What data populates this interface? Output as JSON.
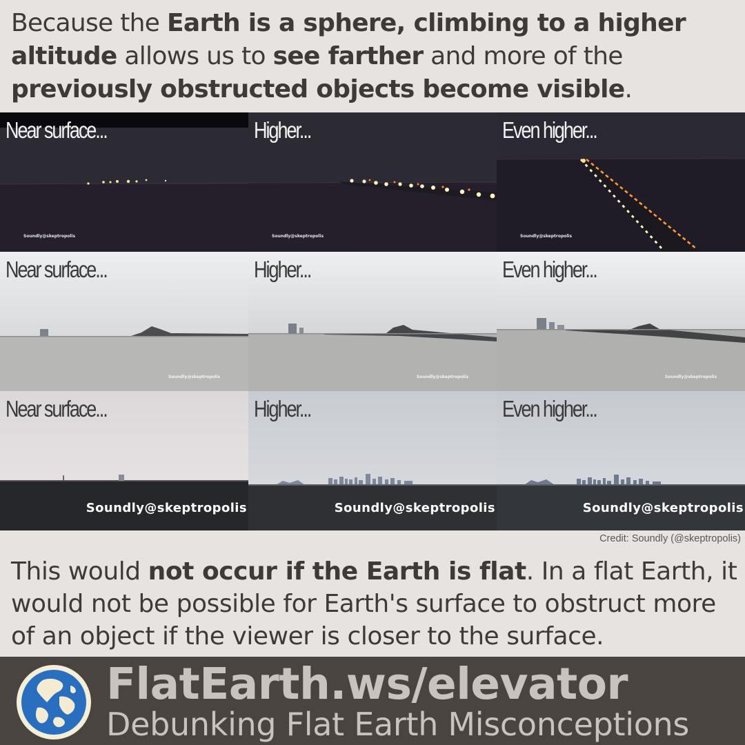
{
  "intro": {
    "t1": "Because the ",
    "b1": "Earth is a sphere, climbing to a higher altitude",
    "t2": " allows us to ",
    "b2": "see farther",
    "t3": " and more of the ",
    "b3": "previously obstructed objects become visible",
    "t4": "."
  },
  "panels": [
    {
      "caption": "Near surface...",
      "watermark": "Soundly@skeptropolis"
    },
    {
      "caption": "Higher...",
      "watermark": "Soundly@skeptropolis"
    },
    {
      "caption": "Even higher...",
      "watermark": "Soundly@skeptropolis"
    },
    {
      "caption": "Near surface...",
      "watermark": "Soundly@skeptropolis"
    },
    {
      "caption": "Higher...",
      "watermark": "Soundly@skeptropolis"
    },
    {
      "caption": "Even higher...",
      "watermark": "Soundly@skeptropolis"
    },
    {
      "caption": "Near surface...",
      "watermark": "Soundly@skeptropolis"
    },
    {
      "caption": "Higher...",
      "watermark": "Soundly@skeptropolis"
    },
    {
      "caption": "Even higher...",
      "watermark": "Soundly@skeptropolis"
    }
  ],
  "credit": "Credit: Soundly (@skeptropolis)",
  "summary": {
    "t1": "This would ",
    "b1": "not occur if the Earth is flat",
    "t2": ". In a flat Earth, it would not be possible for Earth's surface to obstruct more of an object if the viewer is closer to the surface."
  },
  "footer": {
    "url": "FlatEarth.ws/elevator",
    "tagline": "Debunking Flat Earth Misconceptions"
  },
  "colors": {
    "background": "#e6e3e0",
    "text": "#3e3a37",
    "footer_bg": "#4a4440",
    "footer_text": "#c9c3bd"
  }
}
